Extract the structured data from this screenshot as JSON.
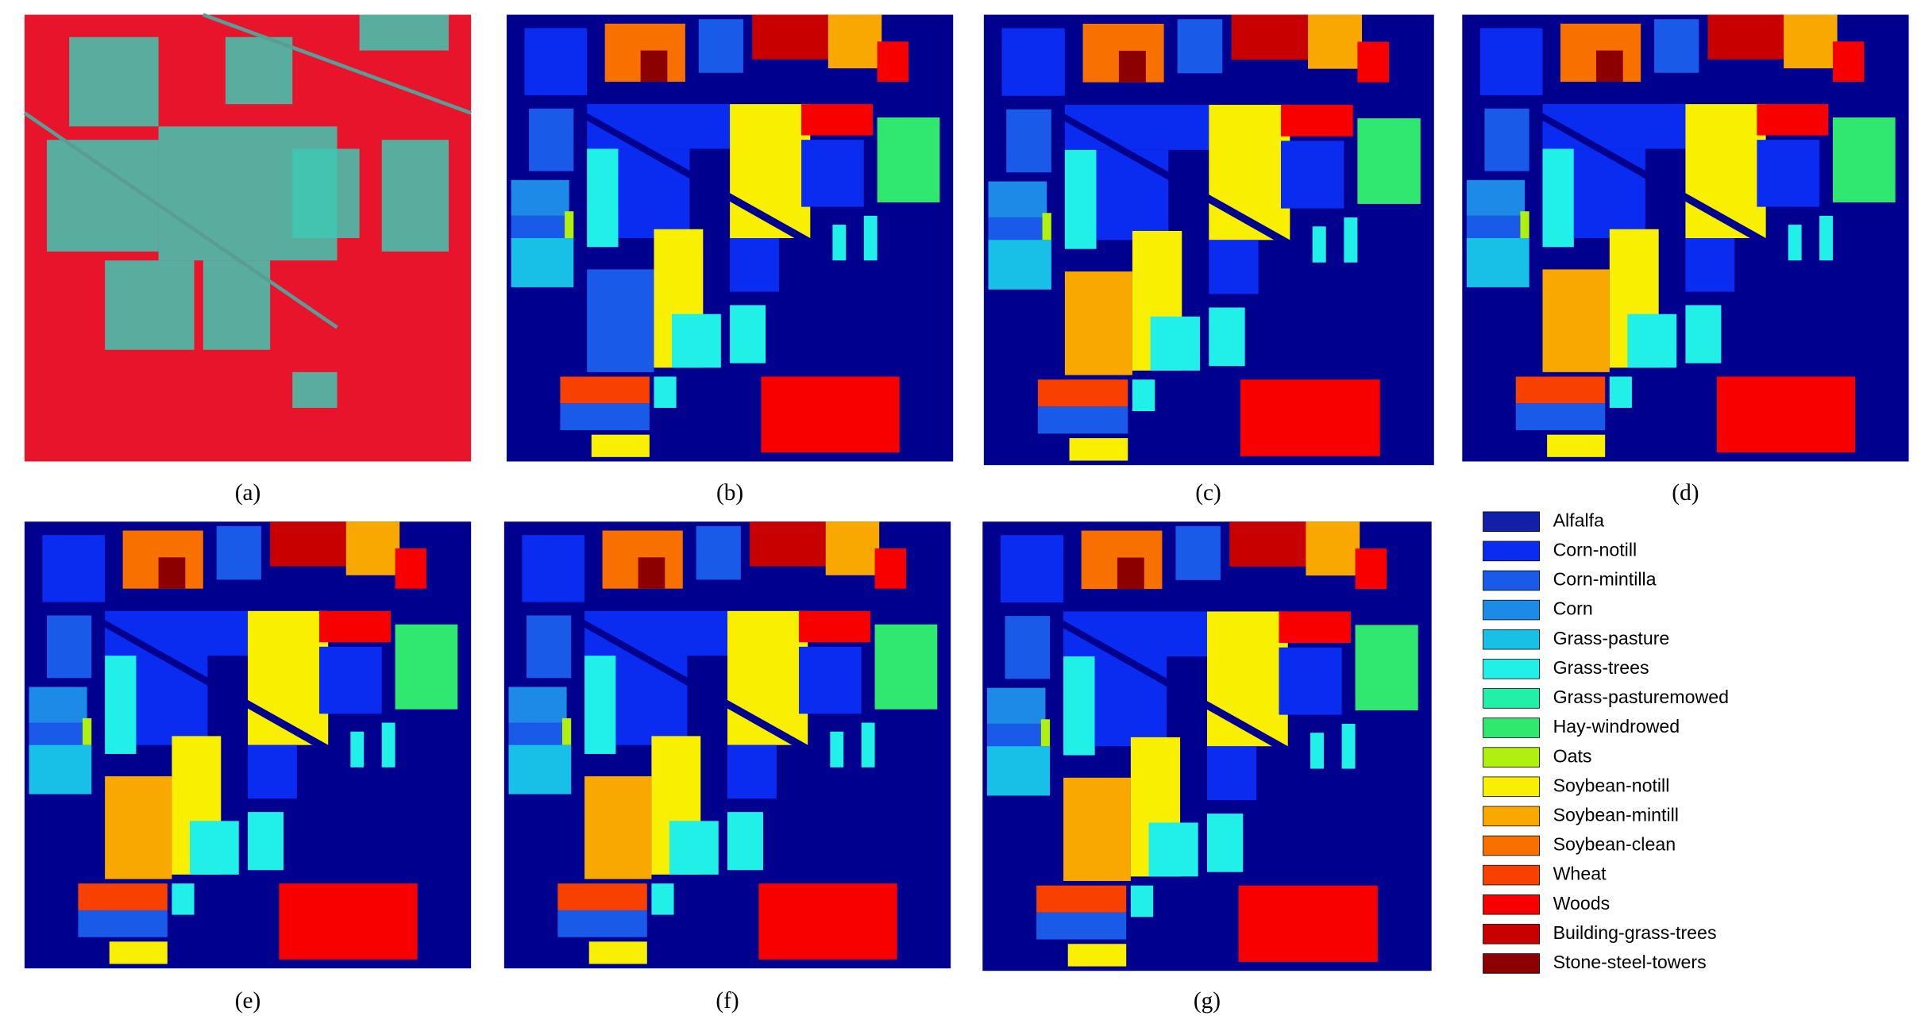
{
  "panels": [
    "(a)",
    "(b)",
    "(c)",
    "(d)",
    "(e)",
    "(f)",
    "(g)"
  ],
  "legend": [
    {
      "name": "Alfalfa",
      "color": "#1020a8"
    },
    {
      "name": "Corn-notill",
      "color": "#0a2cf0"
    },
    {
      "name": "Corn-mintilla",
      "color": "#1a5ae8"
    },
    {
      "name": "Corn",
      "color": "#1e8ae8"
    },
    {
      "name": "Grass-pasture",
      "color": "#18c0e8"
    },
    {
      "name": "Grass-trees",
      "color": "#20f0e8"
    },
    {
      "name": "Grass-pasturemowed",
      "color": "#20f0a8"
    },
    {
      "name": "Hay-windrowed",
      "color": "#30e870"
    },
    {
      "name": "Oats",
      "color": "#b0f010"
    },
    {
      "name": "Soybean-notill",
      "color": "#f8f000"
    },
    {
      "name": "Soybean-mintill",
      "color": "#f8a800"
    },
    {
      "name": "Soybean-clean",
      "color": "#f87000"
    },
    {
      "name": "Wheat",
      "color": "#f84000"
    },
    {
      "name": "Woods",
      "color": "#f80000"
    },
    {
      "name": "Building-grass-trees",
      "color": "#c80000"
    },
    {
      "name": "Stone-steel-towers",
      "color": "#8c0000"
    }
  ]
}
